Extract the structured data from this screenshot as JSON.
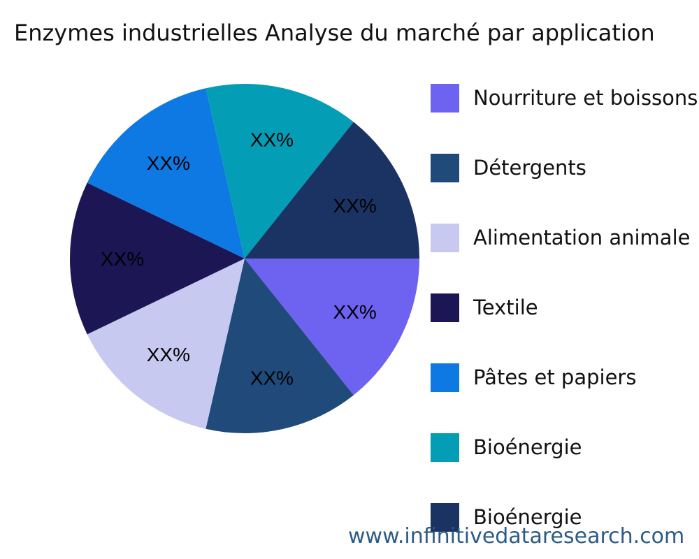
{
  "title": "Enzymes industrielles Analyse du marché par application",
  "watermark": "www.infinitivedataresearch.com",
  "legend": [
    {
      "label": "Nourriture et boissons",
      "color": "#6e62f0"
    },
    {
      "label": "Détergents",
      "color": "#1f4a7a"
    },
    {
      "label": "Alimentation animale",
      "color": "#c8c9f0"
    },
    {
      "label": "Textile",
      "color": "#1c1655"
    },
    {
      "label": "Pâtes et papiers",
      "color": "#0e78e3"
    },
    {
      "label": "Bioénergie",
      "color": "#039eb6"
    },
    {
      "label": "Bioénergie",
      "color": "#1a3363"
    }
  ],
  "chart_data": {
    "type": "pie",
    "title": "Enzymes industrielles Analyse du marché par application",
    "categories": [
      "Nourriture et boissons",
      "Détergents",
      "Alimentation animale",
      "Textile",
      "Pâtes et papiers",
      "Bioénergie",
      "Bioénergie"
    ],
    "values": [
      14.29,
      14.29,
      14.29,
      14.29,
      14.29,
      14.29,
      14.29
    ],
    "data_labels": [
      "XX%",
      "XX%",
      "XX%",
      "XX%",
      "XX%",
      "XX%",
      "XX%"
    ],
    "colors": [
      "#6e62f0",
      "#1f4a7a",
      "#c8c9f0",
      "#1c1655",
      "#0e78e3",
      "#039eb6",
      "#1a3363"
    ],
    "start_angle_deg": 0,
    "direction": "clockwise",
    "legend_position": "right"
  }
}
